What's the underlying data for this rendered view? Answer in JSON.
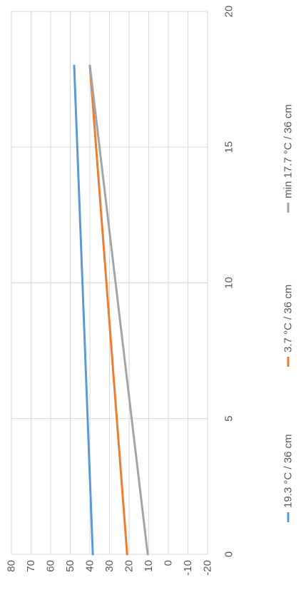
{
  "chart_data": {
    "type": "line",
    "orientation": "rotated-90-clockwise",
    "title": "",
    "xlabel": "",
    "ylabel": "",
    "xlim": [
      0,
      20
    ],
    "ylim": [
      -20,
      80
    ],
    "x_ticks": [
      0,
      5,
      10,
      15,
      20
    ],
    "y_ticks": [
      80,
      70,
      60,
      50,
      40,
      30,
      20,
      10,
      0,
      -10,
      -20
    ],
    "x_tick_labels": [
      "0",
      "5",
      "10",
      "15",
      "20"
    ],
    "y_tick_labels": [
      "80",
      "70",
      "60",
      "50",
      "40",
      "30",
      "20",
      "10",
      "0",
      "-10",
      "-20"
    ],
    "grid": true,
    "legend_position": "right",
    "series": [
      {
        "name": "19.3 °C / 36 cm",
        "color": "#5B9BD5",
        "x": [
          0,
          18
        ],
        "y": [
          38.5,
          48
        ]
      },
      {
        "name": "3.7 °C / 36 cm",
        "color": "#ED7D31",
        "x": [
          0,
          18
        ],
        "y": [
          21,
          40
        ]
      },
      {
        "name": "min 17.7 °C / 36 cm",
        "color": "#A5A5A5",
        "x": [
          0,
          18
        ],
        "y": [
          10.5,
          40
        ]
      }
    ]
  }
}
